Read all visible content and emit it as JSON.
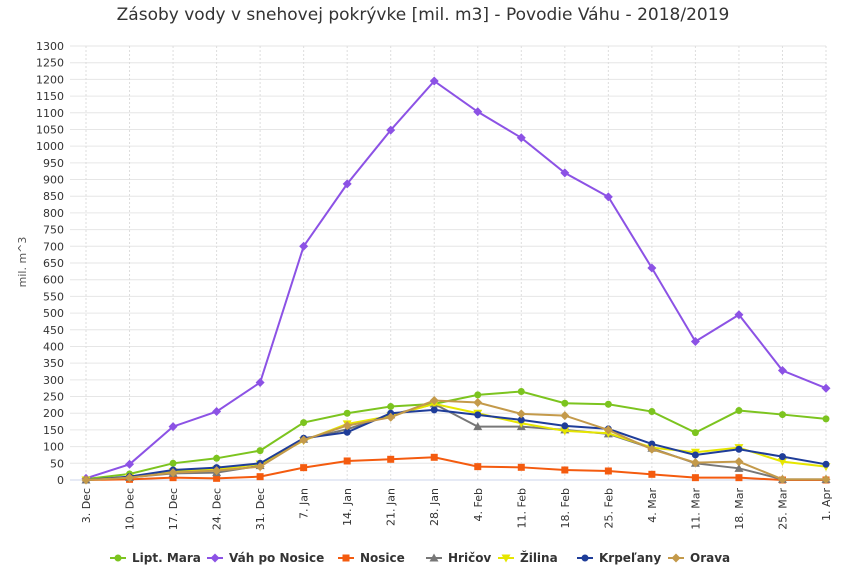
{
  "chart_data": {
    "type": "line",
    "title": "Zásoby vody v snehovej pokrývke [mil. m3] - Povodie Váhu - 2018/2019",
    "ylabel": "mil. m^3",
    "ylim": [
      0,
      1300
    ],
    "ytick_step": 50,
    "grid": true,
    "legend_position": "bottom",
    "x": [
      "3. Dec",
      "10. Dec",
      "17. Dec",
      "24. Dec",
      "31. Dec",
      "7. Jan",
      "14. Jan",
      "21. Jan",
      "28. Jan",
      "4. Feb",
      "11. Feb",
      "18. Feb",
      "25. Feb",
      "4. Mar",
      "11. Mar",
      "18. Mar",
      "25. Mar",
      "1. Apr"
    ],
    "series": [
      {
        "name": "Lipt. Mara",
        "color": "#7cc41f",
        "marker": "circle",
        "values": [
          3,
          18,
          50,
          65,
          88,
          172,
          200,
          220,
          228,
          255,
          265,
          230,
          227,
          205,
          142,
          208,
          196,
          183
        ]
      },
      {
        "name": "Váh po Nosice",
        "color": "#8c52e5",
        "marker": "diamond",
        "values": [
          5,
          47,
          160,
          205,
          292,
          700,
          887,
          1048,
          1195,
          1103,
          1025,
          920,
          848,
          635,
          415,
          495,
          328,
          275
        ]
      },
      {
        "name": "Nosice",
        "color": "#f45b0f",
        "marker": "square",
        "values": [
          0,
          2,
          7,
          5,
          10,
          37,
          57,
          62,
          68,
          40,
          38,
          30,
          27,
          17,
          7,
          7,
          0,
          0
        ]
      },
      {
        "name": "Hričov",
        "color": "#777777",
        "marker": "triangle",
        "values": [
          0,
          8,
          20,
          22,
          43,
          122,
          152,
          195,
          228,
          160,
          160,
          150,
          138,
          95,
          50,
          35,
          2,
          2
        ]
      },
      {
        "name": "Žilina",
        "color": "#e6e600",
        "marker": "triangle-down",
        "values": [
          0,
          8,
          25,
          32,
          48,
          118,
          168,
          192,
          228,
          200,
          170,
          147,
          140,
          97,
          83,
          97,
          55,
          40
        ]
      },
      {
        "name": "Krpeľany",
        "color": "#1f3d99",
        "marker": "circle",
        "values": [
          0,
          10,
          30,
          37,
          50,
          125,
          143,
          200,
          210,
          195,
          180,
          162,
          153,
          108,
          75,
          92,
          70,
          47
        ]
      },
      {
        "name": "Orava",
        "color": "#c49a4a",
        "marker": "diamond",
        "values": [
          0,
          7,
          22,
          28,
          40,
          120,
          163,
          188,
          238,
          232,
          198,
          193,
          150,
          92,
          52,
          55,
          2,
          2
        ]
      }
    ]
  }
}
